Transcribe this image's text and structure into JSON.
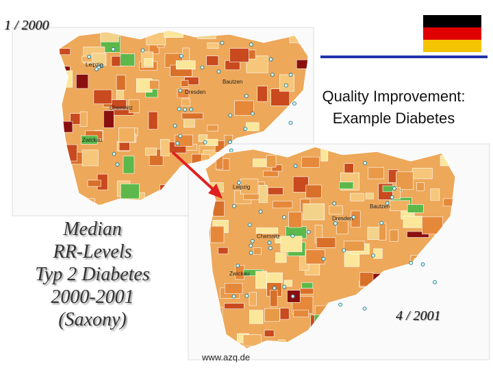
{
  "slide": {
    "date_start": "1 / 2000",
    "title_lines": [
      "Quality Improvement:",
      "Example  Diabetes"
    ],
    "caption_lines": [
      "Median",
      "RR-Levels",
      "Typ 2 Diabetes",
      "2000-2001",
      "(Saxony)"
    ],
    "date_end": "4 / 2001",
    "url": "www.azq.de"
  },
  "maps": [
    {
      "labels": [
        "Leipzig",
        "Bautzen",
        "Dresden",
        "Chemnitz",
        "Zwickau"
      ]
    },
    {
      "labels": [
        "Leipzig",
        "Bautzen",
        "Dresden",
        "Chemnitz",
        "Zwickau"
      ]
    }
  ]
}
